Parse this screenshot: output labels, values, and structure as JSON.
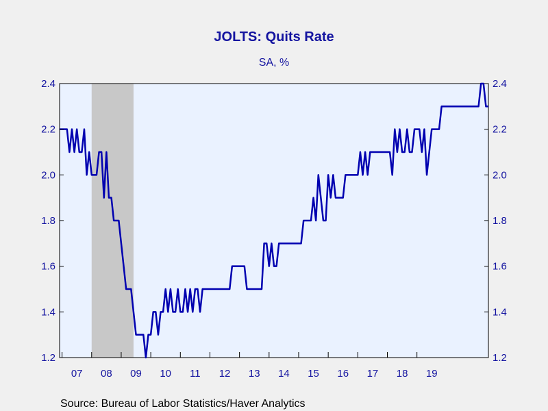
{
  "chart_data": {
    "type": "line",
    "title": "JOLTS: Quits Rate",
    "subtitle": "SA, %",
    "source": "Source:  Bureau of Labor Statistics/Haver Analytics",
    "x_start": "2006-12",
    "x_tick_labels": [
      "07",
      "08",
      "09",
      "10",
      "11",
      "12",
      "13",
      "14",
      "15",
      "16",
      "17",
      "18",
      "19"
    ],
    "y_ticks": [
      "1.2",
      "1.4",
      "1.6",
      "1.8",
      "2.0",
      "2.2",
      "2.4"
    ],
    "ylim": [
      1.2,
      2.4
    ],
    "recession": {
      "start": "2008-01",
      "end": "2009-06"
    },
    "colors": {
      "line": "#0000b0",
      "text": "#1414a0",
      "plot_bg": "#eaf2ff",
      "recession": "#c8c8c8",
      "page_bg": "#f0f0f0"
    },
    "series": [
      {
        "values": [
          2.2,
          2.2,
          2.2,
          2.2,
          2.1,
          2.2,
          2.1,
          2.2,
          2.1,
          2.1,
          2.2,
          2.0,
          2.1,
          2.0,
          2.0,
          2.0,
          2.1,
          2.1,
          1.9,
          2.1,
          1.9,
          1.9,
          1.8,
          1.8,
          1.8,
          1.7,
          1.6,
          1.5,
          1.5,
          1.5,
          1.4,
          1.3,
          1.3,
          1.3,
          1.3,
          1.2,
          1.3,
          1.3,
          1.4,
          1.4,
          1.3,
          1.4,
          1.4,
          1.5,
          1.4,
          1.5,
          1.4,
          1.4,
          1.5,
          1.4,
          1.4,
          1.5,
          1.4,
          1.5,
          1.4,
          1.5,
          1.5,
          1.4,
          1.5,
          1.5,
          1.5,
          1.5,
          1.5,
          1.5,
          1.5,
          1.5,
          1.5,
          1.5,
          1.5,
          1.5,
          1.6,
          1.6,
          1.6,
          1.6,
          1.6,
          1.6,
          1.5,
          1.5,
          1.5,
          1.5,
          1.5,
          1.5,
          1.5,
          1.7,
          1.7,
          1.6,
          1.7,
          1.6,
          1.6,
          1.7,
          1.7,
          1.7,
          1.7,
          1.7,
          1.7,
          1.7,
          1.7,
          1.7,
          1.7,
          1.8,
          1.8,
          1.8,
          1.8,
          1.9,
          1.8,
          2.0,
          1.9,
          1.8,
          1.8,
          2.0,
          1.9,
          2.0,
          1.9,
          1.9,
          1.9,
          1.9,
          2.0,
          2.0,
          2.0,
          2.0,
          2.0,
          2.0,
          2.1,
          2.0,
          2.1,
          2.0,
          2.1,
          2.1,
          2.1,
          2.1,
          2.1,
          2.1,
          2.1,
          2.1,
          2.1,
          2.0,
          2.2,
          2.1,
          2.2,
          2.1,
          2.1,
          2.2,
          2.1,
          2.1,
          2.2,
          2.2,
          2.2,
          2.1,
          2.2,
          2.0,
          2.1,
          2.2,
          2.2,
          2.2,
          2.2,
          2.3,
          2.3,
          2.3,
          2.3,
          2.3,
          2.3,
          2.3,
          2.3,
          2.3,
          2.3,
          2.3,
          2.3,
          2.3,
          2.3,
          2.3,
          2.3,
          2.4,
          2.4,
          2.3,
          2.3
        ]
      }
    ]
  }
}
